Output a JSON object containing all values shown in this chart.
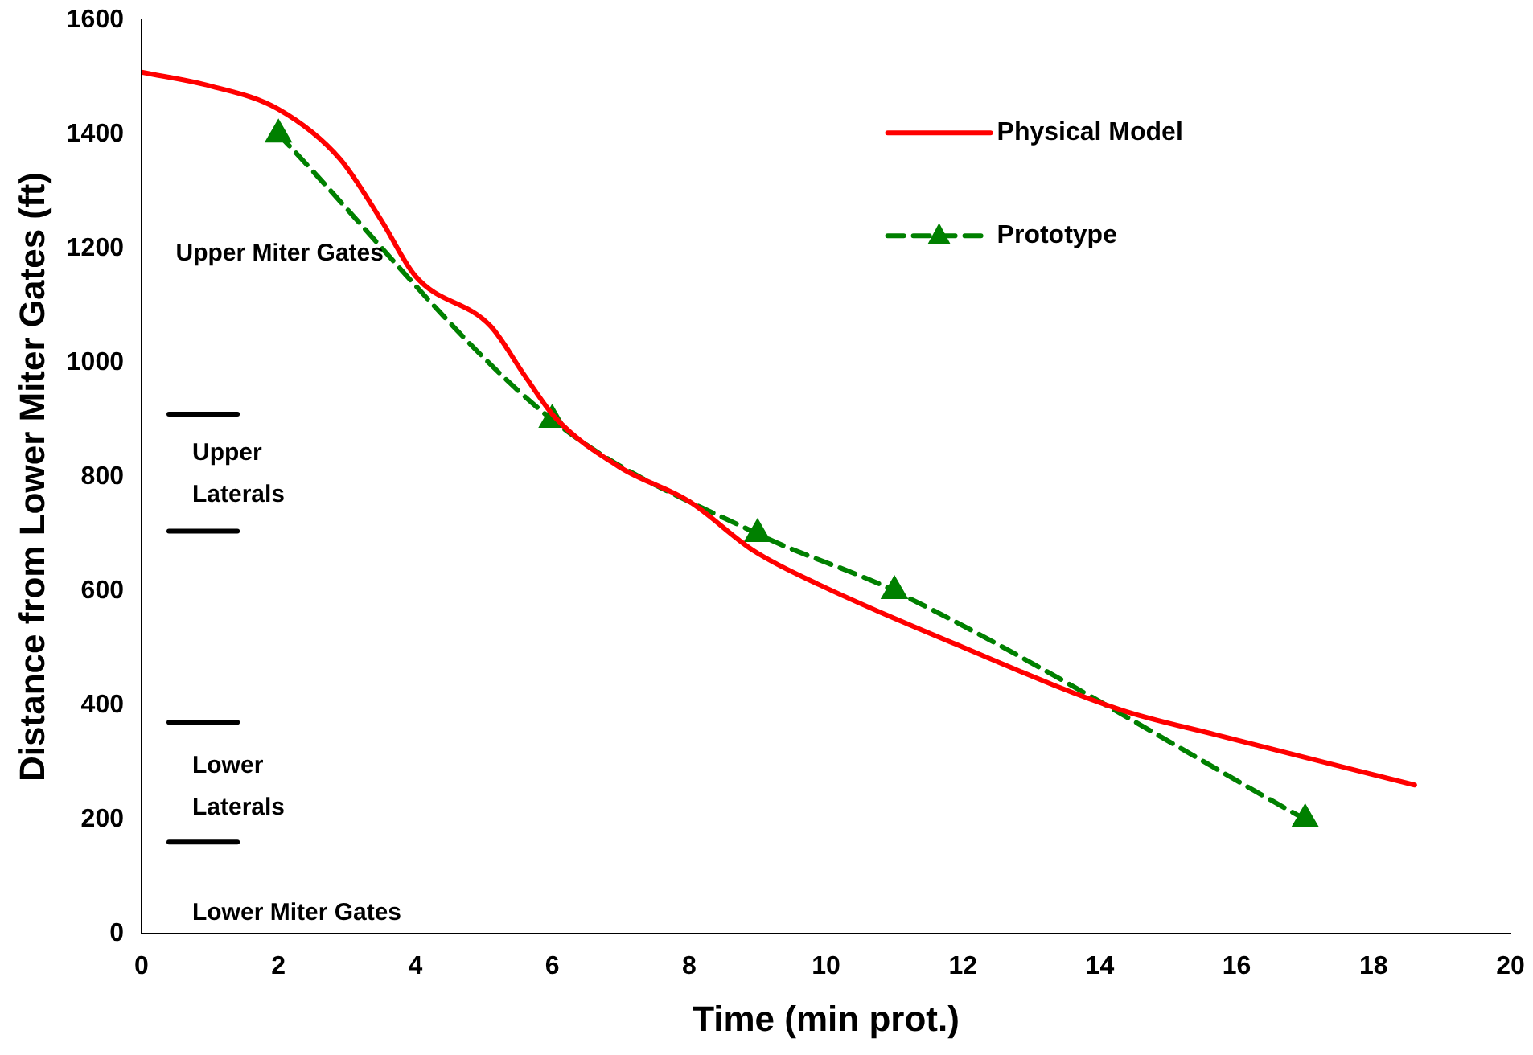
{
  "chart_data": {
    "type": "line",
    "xlabel": "Time (min prot.)",
    "ylabel": "Distance from Lower Miter Gates (ft)",
    "xlim": [
      0,
      20
    ],
    "xticks": [
      0,
      2,
      4,
      6,
      8,
      10,
      12,
      14,
      16,
      18,
      20
    ],
    "ylim": [
      0,
      1600
    ],
    "yticks": [
      0,
      200,
      400,
      600,
      800,
      1000,
      1200,
      1400,
      1600
    ],
    "grid": false,
    "legend": "top right",
    "series": [
      {
        "name": "Physical Model",
        "color": "#ff0000",
        "marker": "none",
        "line_style": "solid",
        "x": [
          0,
          1,
          2,
          2.9,
          3.5,
          4,
          5.1,
          5.6,
          6.05,
          7,
          8,
          8.95,
          9.9,
          11.85,
          14.3,
          15.7,
          18.6
        ],
        "values": [
          1509,
          1485,
          1444,
          1357,
          1250,
          1152,
          1064,
          977,
          903,
          816,
          757,
          670,
          611,
          509,
          392,
          348,
          260
        ]
      },
      {
        "name": "Prototype",
        "color": "#008000",
        "marker": "triangle",
        "line_style": "dashed",
        "x": [
          2,
          6,
          9,
          11,
          17
        ],
        "values": [
          1400,
          900,
          700,
          600,
          200
        ]
      },
      {
        "color": "#000000",
        "marker": "none",
        "line_style": "solid",
        "x": [
          0.4,
          1.4
        ],
        "values": [
          910,
          910
        ]
      },
      {
        "color": "#000000",
        "marker": "none",
        "line_style": "solid",
        "x": [
          0.4,
          1.4
        ],
        "values": [
          705,
          705
        ]
      },
      {
        "color": "#000000",
        "marker": "none",
        "line_style": "solid",
        "x": [
          0.4,
          1.4
        ],
        "values": [
          370,
          370
        ]
      },
      {
        "color": "#000000",
        "marker": "none",
        "line_style": "solid",
        "x": [
          0.4,
          1.4
        ],
        "values": [
          160,
          160
        ]
      }
    ],
    "annotations": [
      "Upper Miter Gates",
      "Upper\nLaterals",
      "Lower\nLaterals",
      "Lower Miter Gates"
    ]
  }
}
